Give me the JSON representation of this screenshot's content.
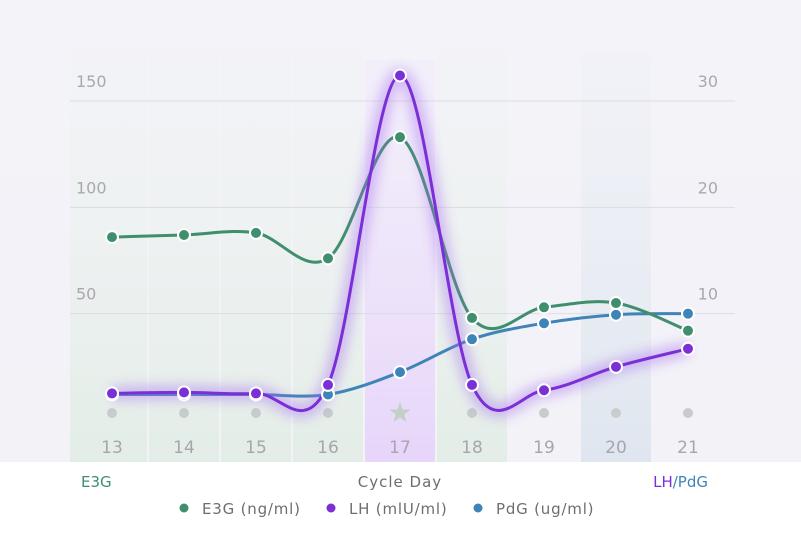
{
  "chart_data": {
    "type": "line",
    "xlabel": "Cycle Day",
    "ylabel_left": "E3G",
    "ylabel_right_parts": [
      "LH",
      "/",
      "PdG"
    ],
    "x": [
      13,
      14,
      15,
      16,
      17,
      18,
      19,
      20,
      21
    ],
    "x_tick_labels": [
      "13",
      "14",
      "15",
      "16",
      "17",
      "18",
      "19",
      "20",
      "21"
    ],
    "y_left": {
      "range": [
        0,
        150
      ],
      "ticks": [
        "50",
        "100",
        "150"
      ]
    },
    "y_right": {
      "range": [
        0,
        30
      ],
      "ticks": [
        "10",
        "20",
        "30"
      ]
    },
    "grid": true,
    "legend_placement": "bottom",
    "highlight_day": 17,
    "day_markers": [
      "dot",
      "dot",
      "dot",
      "dot",
      "star",
      "dot",
      "dot",
      "dot",
      "dot"
    ],
    "day_bands": [
      "green",
      "green",
      "green",
      "green",
      "purple",
      "green",
      "none",
      "blue",
      "none"
    ],
    "series": [
      {
        "name": "E3G (ng/ml)",
        "axis": "left",
        "color": "#3f8f6e",
        "values": [
          86,
          87,
          88,
          76,
          133,
          48,
          53,
          55,
          42
        ]
      },
      {
        "name": "LH (mlU/ml)",
        "axis": "right",
        "color": "#7b2fd6",
        "values": [
          2.5,
          2.6,
          2.5,
          3.3,
          32.4,
          3.3,
          2.8,
          5.0,
          6.7
        ]
      },
      {
        "name": "PdG (ug/ml)",
        "axis": "right",
        "color": "#3f84b8",
        "values": [
          2.4,
          2.4,
          2.4,
          2.4,
          4.5,
          7.6,
          9.1,
          9.9,
          10.0
        ]
      }
    ]
  }
}
